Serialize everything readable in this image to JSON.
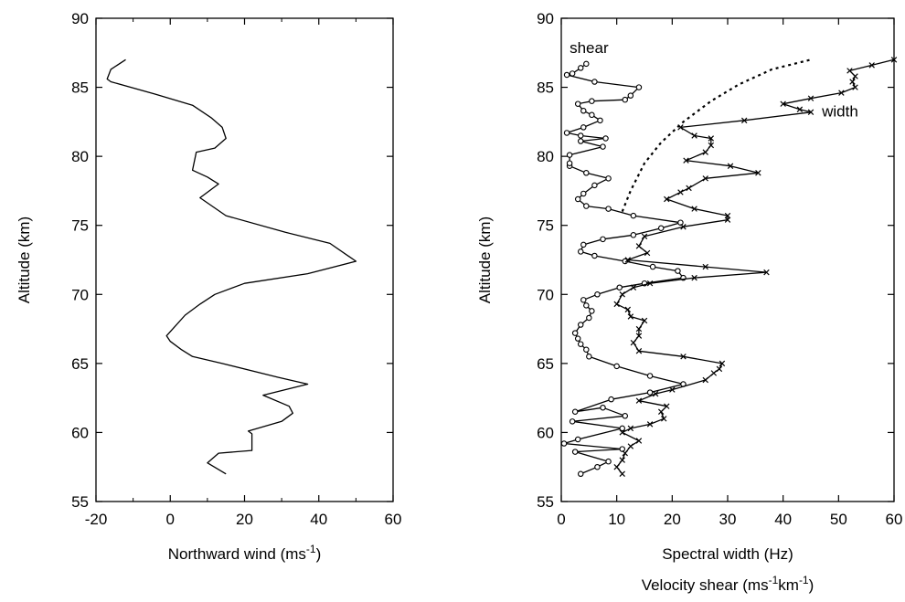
{
  "chart_data": [
    {
      "type": "line",
      "xlabel": "Northward wind (ms",
      "xlabel_sup": "-1",
      "xlabel_end": ")",
      "ylabel": "Altitude (km)",
      "xlim": [
        -20,
        60
      ],
      "ylim": [
        55,
        90
      ],
      "xticks": [
        "-20",
        "0",
        "20",
        "40",
        "60"
      ],
      "yticks": [
        "55",
        "60",
        "65",
        "70",
        "75",
        "80",
        "85",
        "90"
      ],
      "series": [
        {
          "marker": "none",
          "points": [
            [
              15,
              57.0
            ],
            [
              10,
              57.8
            ],
            [
              13,
              58.5
            ],
            [
              22,
              58.7
            ],
            [
              22,
              59.9
            ],
            [
              21,
              60.1
            ],
            [
              30,
              60.8
            ],
            [
              33,
              61.4
            ],
            [
              32,
              61.9
            ],
            [
              25,
              62.7
            ],
            [
              37,
              63.5
            ],
            [
              29,
              64.0
            ],
            [
              14,
              65.0
            ],
            [
              6,
              65.5
            ],
            [
              3,
              66.0
            ],
            [
              0,
              66.6
            ],
            [
              -1,
              67.0
            ],
            [
              1,
              67.6
            ],
            [
              4,
              68.5
            ],
            [
              8,
              69.3
            ],
            [
              12,
              70.0
            ],
            [
              20,
              70.8
            ],
            [
              37,
              71.5
            ],
            [
              50,
              72.4
            ],
            [
              43,
              73.7
            ],
            [
              31,
              74.5
            ],
            [
              15,
              75.7
            ],
            [
              8,
              77.0
            ],
            [
              13,
              78.0
            ],
            [
              10,
              78.5
            ],
            [
              6,
              79.0
            ],
            [
              7,
              80.3
            ],
            [
              12,
              80.6
            ],
            [
              15,
              81.3
            ],
            [
              14,
              82.1
            ],
            [
              11,
              82.8
            ],
            [
              6,
              83.7
            ],
            [
              -4,
              84.5
            ],
            [
              -16,
              85.4
            ],
            [
              -17,
              85.6
            ],
            [
              -16,
              86.3
            ],
            [
              -12,
              87.0
            ]
          ]
        }
      ]
    },
    {
      "type": "line",
      "xlabel": "Spectral width (Hz)",
      "xlabel2": "Velocity shear (ms",
      "xlabel2_sup1": "-1",
      "xlabel2_mid": "km",
      "xlabel2_sup2": "-1",
      "xlabel2_end": ")",
      "ylabel": "Altitude (km)",
      "xlim": [
        0,
        60
      ],
      "ylim": [
        55,
        90
      ],
      "xticks": [
        "0",
        "10",
        "20",
        "30",
        "40",
        "50",
        "60"
      ],
      "yticks": [
        "55",
        "60",
        "65",
        "70",
        "75",
        "80",
        "85",
        "90"
      ],
      "annotations": [
        {
          "text": "shear",
          "x": 1.5,
          "y": 87.5
        },
        {
          "text": "width",
          "x": 47,
          "y": 82.9
        }
      ],
      "series": [
        {
          "name": "shear",
          "marker": "circle",
          "points": [
            [
              3.5,
              57.0
            ],
            [
              6.5,
              57.5
            ],
            [
              8.5,
              57.9
            ],
            [
              2.5,
              58.6
            ],
            [
              11.0,
              58.8
            ],
            [
              0.5,
              59.2
            ],
            [
              3.0,
              59.5
            ],
            [
              11.0,
              60.3
            ],
            [
              2.0,
              60.8
            ],
            [
              11.5,
              61.2
            ],
            [
              7.5,
              61.8
            ],
            [
              2.5,
              61.5
            ],
            [
              9.0,
              62.4
            ],
            [
              16.0,
              62.9
            ],
            [
              22.0,
              63.5
            ],
            [
              16.0,
              64.1
            ],
            [
              10.0,
              64.8
            ],
            [
              5.0,
              65.5
            ],
            [
              4.5,
              66.0
            ],
            [
              3.5,
              66.4
            ],
            [
              3.0,
              66.8
            ],
            [
              2.5,
              67.2
            ],
            [
              3.5,
              67.8
            ],
            [
              5.0,
              68.3
            ],
            [
              5.5,
              68.8
            ],
            [
              4.5,
              69.2
            ],
            [
              4.0,
              69.6
            ],
            [
              6.5,
              70.0
            ],
            [
              10.5,
              70.5
            ],
            [
              15.0,
              70.8
            ],
            [
              22.0,
              71.2
            ],
            [
              21.0,
              71.7
            ],
            [
              16.5,
              72.0
            ],
            [
              11.5,
              72.4
            ],
            [
              6.0,
              72.8
            ],
            [
              3.5,
              73.1
            ],
            [
              4.0,
              73.6
            ],
            [
              7.5,
              74.0
            ],
            [
              13.0,
              74.3
            ],
            [
              18.0,
              74.8
            ],
            [
              21.5,
              75.2
            ],
            [
              13.0,
              75.7
            ],
            [
              8.5,
              76.2
            ],
            [
              4.5,
              76.4
            ],
            [
              3.0,
              76.9
            ],
            [
              4.0,
              77.3
            ],
            [
              6.0,
              77.9
            ],
            [
              8.5,
              78.4
            ],
            [
              4.5,
              78.8
            ],
            [
              1.5,
              79.3
            ],
            [
              1.5,
              79.5
            ],
            [
              1.5,
              80.1
            ],
            [
              7.5,
              80.7
            ],
            [
              3.5,
              81.1
            ],
            [
              8.0,
              81.3
            ],
            [
              3.5,
              81.5
            ],
            [
              1.0,
              81.7
            ],
            [
              4.0,
              82.1
            ],
            [
              7.0,
              82.6
            ],
            [
              5.5,
              83.0
            ],
            [
              4.0,
              83.3
            ],
            [
              3.0,
              83.8
            ],
            [
              5.5,
              84.0
            ],
            [
              11.5,
              84.1
            ],
            [
              12.5,
              84.4
            ],
            [
              14.0,
              85.0
            ],
            [
              6.0,
              85.4
            ],
            [
              1.0,
              85.9
            ],
            [
              2.0,
              86.0
            ],
            [
              3.5,
              86.4
            ],
            [
              4.5,
              86.7
            ]
          ]
        },
        {
          "name": "width",
          "marker": "cross",
          "points": [
            [
              11.0,
              57.0
            ],
            [
              10.0,
              57.5
            ],
            [
              11.0,
              58.0
            ],
            [
              11.5,
              58.5
            ],
            [
              12.5,
              59.0
            ],
            [
              14.0,
              59.4
            ],
            [
              11.0,
              60.0
            ],
            [
              12.5,
              60.3
            ],
            [
              16.0,
              60.6
            ],
            [
              18.5,
              61.0
            ],
            [
              18.0,
              61.5
            ],
            [
              19.0,
              61.9
            ],
            [
              14.0,
              62.3
            ],
            [
              17.0,
              62.8
            ],
            [
              20.0,
              63.1
            ],
            [
              26.0,
              63.8
            ],
            [
              27.5,
              64.3
            ],
            [
              28.5,
              64.6
            ],
            [
              29.0,
              65.0
            ],
            [
              22.0,
              65.5
            ],
            [
              14.0,
              65.9
            ],
            [
              13.0,
              66.5
            ],
            [
              14.0,
              67.0
            ],
            [
              14.0,
              67.5
            ],
            [
              15.0,
              68.1
            ],
            [
              12.5,
              68.4
            ],
            [
              12.0,
              68.9
            ],
            [
              10.0,
              69.3
            ],
            [
              11.0,
              70.0
            ],
            [
              13.0,
              70.5
            ],
            [
              16.0,
              70.8
            ],
            [
              24.0,
              71.2
            ],
            [
              37.0,
              71.6
            ],
            [
              26.0,
              72.0
            ],
            [
              12.0,
              72.5
            ],
            [
              15.5,
              73.0
            ],
            [
              14.0,
              73.5
            ],
            [
              15.0,
              74.2
            ],
            [
              22.0,
              74.9
            ],
            [
              30.0,
              75.4
            ],
            [
              30.0,
              75.7
            ],
            [
              24.0,
              76.2
            ],
            [
              19.0,
              76.9
            ],
            [
              21.5,
              77.4
            ],
            [
              23.0,
              77.7
            ],
            [
              26.0,
              78.4
            ],
            [
              35.5,
              78.8
            ],
            [
              30.5,
              79.3
            ],
            [
              22.5,
              79.7
            ],
            [
              26.0,
              80.3
            ],
            [
              27.0,
              80.8
            ],
            [
              27.0,
              81.3
            ],
            [
              24.0,
              81.5
            ],
            [
              21.5,
              82.1
            ],
            [
              33.0,
              82.6
            ],
            [
              45.0,
              83.2
            ],
            [
              43.0,
              83.4
            ],
            [
              40.0,
              83.8
            ],
            [
              45.0,
              84.2
            ],
            [
              50.5,
              84.6
            ],
            [
              53.0,
              85.0
            ],
            [
              52.5,
              85.4
            ],
            [
              53.0,
              85.8
            ],
            [
              52.0,
              86.2
            ],
            [
              56.0,
              86.6
            ],
            [
              60.0,
              87.0
            ]
          ]
        },
        {
          "marker": "none",
          "dashed": true,
          "points": [
            [
              11.0,
              76.0
            ],
            [
              12.5,
              77.5
            ],
            [
              15.0,
              79.5
            ],
            [
              18.0,
              81.0
            ],
            [
              22.0,
              82.5
            ],
            [
              27.0,
              84.0
            ],
            [
              32.0,
              85.2
            ],
            [
              38.0,
              86.3
            ],
            [
              45.0,
              87.0
            ]
          ]
        }
      ]
    }
  ]
}
